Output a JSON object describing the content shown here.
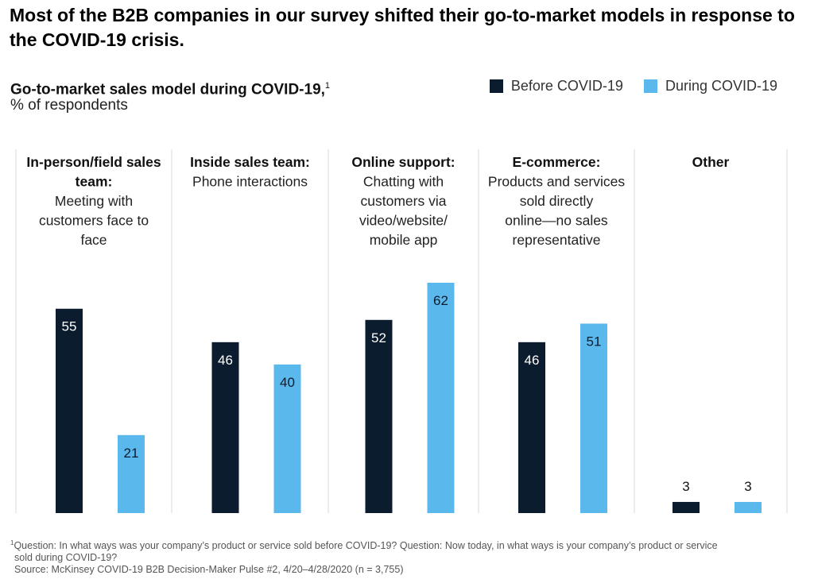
{
  "headline": "Most of the B2B companies in our survey shifted their go-to-market models in response to the COVID-19 crisis.",
  "chart_data": {
    "type": "bar",
    "title": "Go-to-market sales model during COVID-19,",
    "title_footnote_marker": "1",
    "unit_label": "% of respondents",
    "categories": [
      {
        "title": "In-person/field sales team:",
        "description": "Meeting with customers face to face"
      },
      {
        "title": "Inside sales team:",
        "description": "Phone interactions"
      },
      {
        "title": "Online support:",
        "description": "Chatting with customers via video/website/ mobile app"
      },
      {
        "title": "E-commerce:",
        "description": "Products and services sold directly online—no sales representative"
      },
      {
        "title": "Other",
        "description": ""
      }
    ],
    "series": [
      {
        "name": "Before COVID-19",
        "color": "#0b1c2e",
        "values": [
          55,
          46,
          52,
          46,
          3
        ]
      },
      {
        "name": "During COVID-19",
        "color": "#5bb8ec",
        "values": [
          21,
          40,
          62,
          51,
          3
        ]
      }
    ],
    "ylim": [
      0,
      62
    ],
    "grid": false,
    "legend_position": "top-right"
  },
  "footnote": {
    "marker": "1",
    "question_line1": "Question: In what ways was your company’s product or service sold before COVID-19? Question: Now today, in what ways is your company’s product or service",
    "question_line2": "sold during COVID-19?",
    "source": "Source: McKinsey COVID-19 B2B Decision-Maker Pulse #2, 4/20–4/28/2020 (n = 3,755)"
  }
}
